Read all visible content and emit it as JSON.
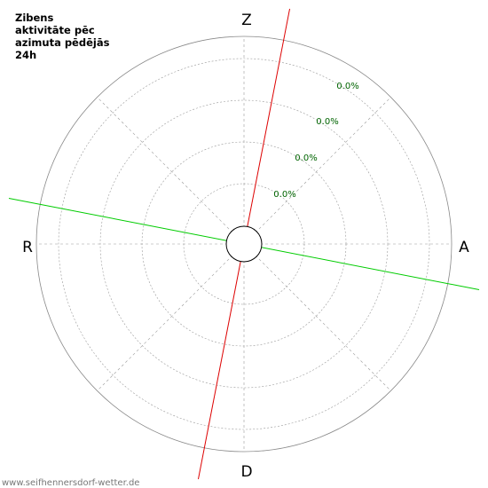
{
  "chart_data": {
    "type": "polar",
    "title": "Zibens aktivitāte pēc azimuta pēdējās 24h",
    "directions": {
      "north": "Z",
      "east": "A",
      "south": "D",
      "west": "R"
    },
    "ring_labels": [
      "0.0%",
      "0.0%",
      "0.0%",
      "0.0%"
    ],
    "grid": true,
    "spoke_angles_deg": [
      0,
      45,
      90,
      135,
      180,
      225,
      270,
      315
    ],
    "lines": [
      {
        "azimuth_deg": 11,
        "color": "#dd0000"
      },
      {
        "azimuth_deg": 101,
        "color": "#00cc00"
      }
    ]
  },
  "footer": "www.seifhennersdorf-wetter.de",
  "colors": {
    "grid": "#999999",
    "outer_ring": "#888888",
    "ring_label": "#006400",
    "center": "#000000"
  }
}
